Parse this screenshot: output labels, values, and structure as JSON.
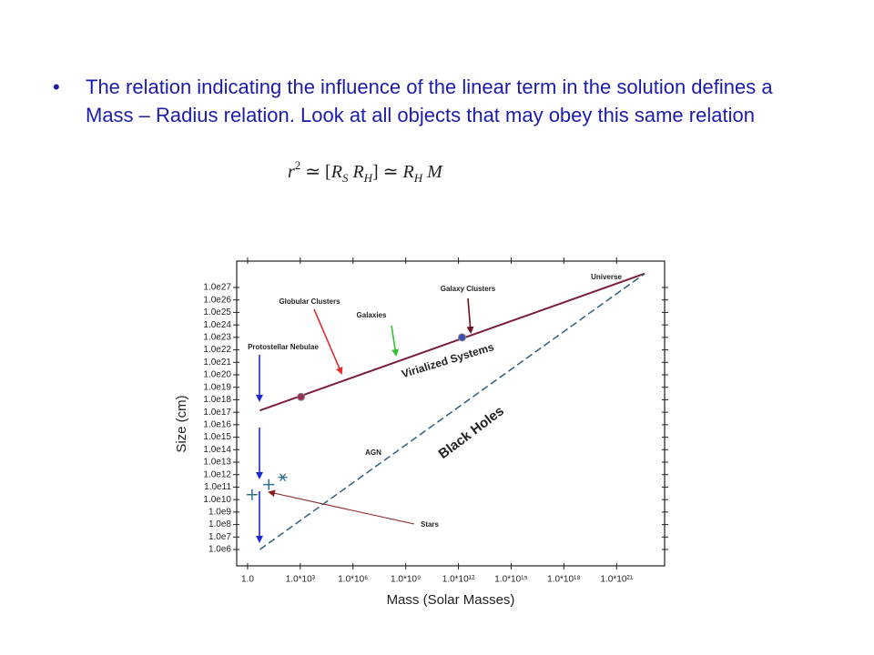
{
  "bullet": "The relation indicating the influence of the linear term in the solution defines a Mass – Radius relation. Look at all objects that may obey this same relation",
  "formula": [
    "r",
    "2",
    " ≃ [",
    "R",
    "S",
    " ",
    "R",
    "H",
    "] ≃ ",
    "R",
    "H",
    " M"
  ],
  "chart_data": {
    "type": "line",
    "xlabel": "Mass (Solar Masses)",
    "ylabel": "Size (cm)",
    "xscale": "log",
    "yscale": "log",
    "xlim": [
      0.24,
      5.4e+23
    ],
    "ylim": [
      49000.0,
      1.3e+29
    ],
    "xticks": [
      {
        "value": 1,
        "label": "1.0"
      },
      {
        "value": 1000.0,
        "label": "1.0*10³"
      },
      {
        "value": 1000000.0,
        "label": "1.0*10⁶"
      },
      {
        "value": 1000000000.0,
        "label": "1.0*10⁹"
      },
      {
        "value": 1000000000000.0,
        "label": "1.0*10¹²"
      },
      {
        "value": 1000000000000000.0,
        "label": "1.0*10¹⁵"
      },
      {
        "value": 1e+18,
        "label": "1.0*10¹⁸"
      },
      {
        "value": 1e+21,
        "label": "1.0*10²¹"
      }
    ],
    "yticks": [
      {
        "value": 1000000.0,
        "label": "1.0e6"
      },
      {
        "value": 10000000.0,
        "label": "1.0e7"
      },
      {
        "value": 100000000.0,
        "label": "1.0e8"
      },
      {
        "value": 1000000000.0,
        "label": "1.0e9"
      },
      {
        "value": 10000000000.0,
        "label": "1.0e10"
      },
      {
        "value": 100000000000.0,
        "label": "1.0e11"
      },
      {
        "value": 1000000000000.0,
        "label": "1.0e12"
      },
      {
        "value": 10000000000000.0,
        "label": "1.0e13"
      },
      {
        "value": 100000000000000.0,
        "label": "1.0e14"
      },
      {
        "value": 1000000000000000.0,
        "label": "1.0e15"
      },
      {
        "value": 1e+16,
        "label": "1.0e16"
      },
      {
        "value": 1e+17,
        "label": "1.0e17"
      },
      {
        "value": 1e+18,
        "label": "1.0e18"
      },
      {
        "value": 1e+19,
        "label": "1.0e19"
      },
      {
        "value": 1e+20,
        "label": "1.0e20"
      },
      {
        "value": 1e+21,
        "label": "1.0e21"
      },
      {
        "value": 1e+22,
        "label": "1.0e22"
      },
      {
        "value": 1e+23,
        "label": "1.0e23"
      },
      {
        "value": 1e+24,
        "label": "1.0e24"
      },
      {
        "value": 1e+25,
        "label": "1.0e25"
      },
      {
        "value": 1e+26,
        "label": "1.0e26"
      },
      {
        "value": 1e+27,
        "label": "1.0e27"
      }
    ],
    "series": [
      {
        "name": "Virialized Systems",
        "color": "#7a1f3a",
        "dash": false,
        "x": [
          5,
          4e+22
        ],
        "values": [
          1.4e+17,
          1.3e+28
        ]
      },
      {
        "name": "Black Holes",
        "color": "#2f5f7f",
        "dash": true,
        "x": [
          5,
          4e+22
        ],
        "values": [
          1000000.0,
          1.3e+28
        ]
      }
    ],
    "points": [
      {
        "marker": "dot",
        "color": "#9a3050",
        "x": [
          1100.0
        ],
        "values": [
          1.7e+18
        ]
      },
      {
        "marker": "dot",
        "color": "#3a50b0",
        "x": [
          1600000000000.0
        ],
        "values": [
          1e+23
        ]
      },
      {
        "marker": "plus",
        "color": "#2f6f8f",
        "x": [
          1.8,
          16
        ],
        "values": [
          25000000000.0,
          160000000000.0
        ]
      },
      {
        "marker": "star",
        "color": "#2f6f8f",
        "x": [
          100
        ],
        "values": [
          600000000000.0
        ]
      }
    ],
    "annotations": [
      "Universe",
      "Galaxy Clusters",
      "Globular Clusters",
      "Galaxies",
      "Protostellar Nebulae",
      "AGN",
      "Stars"
    ]
  }
}
